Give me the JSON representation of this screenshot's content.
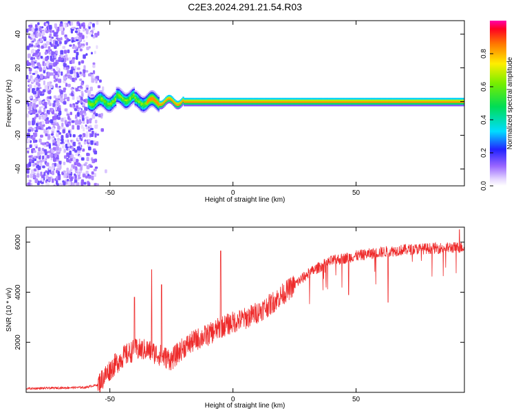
{
  "title": "C2E3.2024.291.21.54.R03",
  "chart_data": [
    {
      "type": "heatmap",
      "xlabel": "Height of straight line (km)",
      "ylabel": "Frequency (Hz)",
      "xlim": [
        -84,
        94
      ],
      "ylim": [
        -50,
        48
      ],
      "xticks": [
        -50,
        0,
        50
      ],
      "yticks": [
        -40,
        -20,
        0,
        20,
        40
      ],
      "colorbar": {
        "label": "Normalized spectral amplitude",
        "range": [
          0,
          1
        ],
        "ticks": [
          0.0,
          0.2,
          0.4,
          0.6,
          0.8
        ],
        "tick_labels": [
          "0.0",
          "0.2",
          "0.4",
          "0.6",
          "0.8"
        ]
      },
      "grid": false
    },
    {
      "type": "line",
      "xlabel": "Height of straight line (km)",
      "ylabel": "SNR (10 * v/v)",
      "xlim": [
        -84,
        94
      ],
      "ylim": [
        0,
        6600
      ],
      "xticks": [
        -50,
        0,
        50
      ],
      "yticks": [
        2000,
        4000,
        6000
      ],
      "color": "#ee2b2b",
      "trend": [
        {
          "x": -84,
          "y": 150
        },
        {
          "x": -60,
          "y": 200
        },
        {
          "x": -55,
          "y": 300
        },
        {
          "x": -50,
          "y": 900
        },
        {
          "x": -45,
          "y": 1400
        },
        {
          "x": -40,
          "y": 1700
        },
        {
          "x": -35,
          "y": 1700
        },
        {
          "x": -30,
          "y": 1500
        },
        {
          "x": -25,
          "y": 1300
        },
        {
          "x": -20,
          "y": 1800
        },
        {
          "x": -15,
          "y": 2100
        },
        {
          "x": -10,
          "y": 2300
        },
        {
          "x": -5,
          "y": 2600
        },
        {
          "x": 0,
          "y": 2800
        },
        {
          "x": 5,
          "y": 2950
        },
        {
          "x": 10,
          "y": 3200
        },
        {
          "x": 15,
          "y": 3500
        },
        {
          "x": 20,
          "y": 3900
        },
        {
          "x": 25,
          "y": 4300
        },
        {
          "x": 30,
          "y": 4700
        },
        {
          "x": 35,
          "y": 5000
        },
        {
          "x": 40,
          "y": 5250
        },
        {
          "x": 50,
          "y": 5450
        },
        {
          "x": 60,
          "y": 5600
        },
        {
          "x": 70,
          "y": 5700
        },
        {
          "x": 80,
          "y": 5750
        },
        {
          "x": 94,
          "y": 5800
        }
      ],
      "spikes": [
        {
          "x": -40,
          "y": 3800
        },
        {
          "x": -33,
          "y": 4900
        },
        {
          "x": -29,
          "y": 4300
        },
        {
          "x": -5,
          "y": 5650
        },
        {
          "x": 47,
          "y": 3900
        },
        {
          "x": 63,
          "y": 3600
        },
        {
          "x": 92,
          "y": 6500
        }
      ],
      "grid": false
    }
  ]
}
